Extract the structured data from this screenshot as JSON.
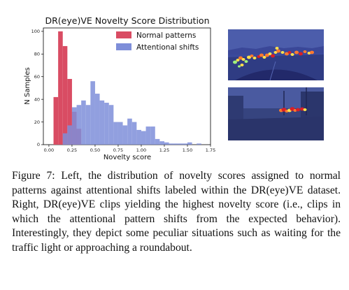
{
  "chart_data": {
    "type": "bar",
    "title": "DR(eye)VE Novelty Score Distribution",
    "xlabel": "Novelty score",
    "ylabel": "N Samples",
    "xlim": [
      -0.06,
      1.75
    ],
    "ylim": [
      0,
      103
    ],
    "xticks": [
      "0.00",
      "0.25",
      "0.50",
      "0.75",
      "1.00",
      "1.25",
      "1.50",
      "1.75"
    ],
    "yticks": [
      "0",
      "20",
      "40",
      "60",
      "80",
      "100"
    ],
    "bin_width": 0.05,
    "legend_position": "top-right",
    "grid": false,
    "series": [
      {
        "name": "Normal patterns",
        "color": "#d94c63",
        "bin_starts": [
          0.05,
          0.1,
          0.15,
          0.2,
          0.25,
          0.3
        ],
        "values": [
          42,
          100,
          87,
          58,
          29,
          14
        ]
      },
      {
        "name": "Attentional shifts",
        "color": "#7e8ed9",
        "bin_starts": [
          0.15,
          0.2,
          0.25,
          0.3,
          0.35,
          0.4,
          0.45,
          0.5,
          0.55,
          0.6,
          0.65,
          0.7,
          0.75,
          0.8,
          0.85,
          0.9,
          0.95,
          1.0,
          1.05,
          1.1,
          1.15,
          1.2,
          1.25,
          1.3,
          1.35,
          1.4,
          1.45,
          1.5,
          1.55,
          1.6
        ],
        "values": [
          10,
          17,
          33,
          35,
          39,
          35,
          56,
          45,
          39,
          37,
          35,
          20,
          20,
          17,
          23,
          20,
          13,
          12,
          16,
          16,
          5,
          3,
          2,
          1,
          1,
          1,
          1,
          2,
          0,
          1
        ]
      }
    ]
  },
  "thumbnails": [
    {
      "name": "clip-roundabout",
      "background": "#3b4a9c",
      "heat_colors": [
        "#ffe14d",
        "#ff7a2e",
        "#d91f26",
        "#9ff07a"
      ]
    },
    {
      "name": "clip-traffic-light",
      "background": "#36447f",
      "heat_colors": [
        "#ffe14d",
        "#ff7a2e",
        "#d91f26"
      ]
    }
  ],
  "caption": "Figure 7: Left, the distribution of novelty scores assigned to normal patterns against attentional shifts labeled within the DR(eye)VE dataset. Right, DR(eye)VE clips yielding the highest novelty score (i.e., clips in which the attentional pattern shifts from the expected behavior). Interestingly, they depict some peculiar situations such as waiting for the traffic light or approaching a roundabout."
}
